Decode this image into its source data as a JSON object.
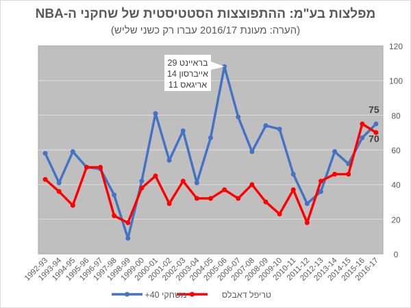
{
  "chart_data": {
    "type": "line",
    "title": "מפלצות בע\"מ: ההתפוצצות הסטטיסטית של שחקני ה-NBA",
    "subtitle": "(הערה: מעונת 2016/17 עברו רק כשני שליש)",
    "categories": [
      "1992-93",
      "1993-94",
      "1994-95",
      "1995-96",
      "1996-97",
      "1997-98",
      "1998-99",
      "1999-00",
      "2000-01",
      "2001-02",
      "2002-03",
      "2003-04",
      "2004-05",
      "2005-06",
      "2006-07",
      "2007-08",
      "2008-09",
      "2009-10",
      "2010-11",
      "2011-12",
      "2012-13",
      "2013-14",
      "2014-15",
      "2015-16",
      "2016-17"
    ],
    "series": [
      {
        "name": "משחקי 40+",
        "color": "#4472C4",
        "values": [
          58,
          41,
          59,
          50,
          49,
          34,
          9,
          42,
          81,
          54,
          71,
          41,
          67,
          108,
          79,
          59,
          74,
          72,
          46,
          29,
          36,
          59,
          52,
          67,
          75
        ]
      },
      {
        "name": "טריפל דאבלס",
        "color": "#FF0000",
        "values": [
          43,
          36,
          28,
          50,
          50,
          22,
          18,
          38,
          45,
          29,
          42,
          32,
          32,
          37,
          32,
          40,
          30,
          23,
          37,
          18,
          42,
          46,
          46,
          75,
          70
        ]
      }
    ],
    "ylim": [
      0,
      120
    ],
    "yticks": [
      0,
      20,
      40,
      60,
      80,
      100,
      120
    ],
    "y_axis_side": "right",
    "grid": true,
    "plot_background": "#BFBFBF",
    "legend_position": "bottom",
    "annotations": {
      "callout": {
        "category": "2005-06",
        "lines": [
          "בראיינט 29",
          "אייברסון 14",
          "אריגאס 11"
        ]
      },
      "end_labels": [
        {
          "series": 0,
          "text": "75"
        },
        {
          "series": 1,
          "text": "70"
        }
      ]
    }
  }
}
